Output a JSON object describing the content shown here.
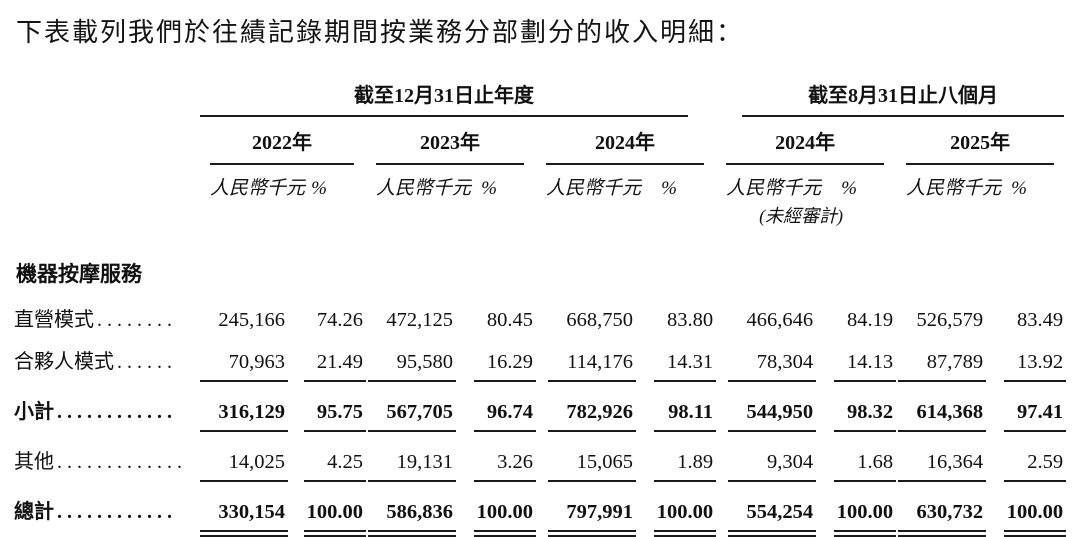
{
  "title": "下表載列我們於往績記錄期間按業務分部劃分的收入明細：",
  "table": {
    "groups": [
      {
        "label": "截至12月31日止年度",
        "years": [
          "2022年",
          "2023年",
          "2024年"
        ]
      },
      {
        "label": "截至8月31日止八個月",
        "years": [
          "2024年",
          "2025年"
        ]
      }
    ],
    "unit_label": "人民幣千元",
    "pct_label": "%",
    "unaudited_note": "(未經審計)",
    "section_header": "機器按摩服務",
    "rows": [
      {
        "label": "直營模式",
        "leader": "........",
        "values": [
          "245,166",
          "74.26",
          "472,125",
          "80.45",
          "668,750",
          "83.80",
          "466,646",
          "84.19",
          "526,579",
          "83.49"
        ]
      },
      {
        "label": "合夥人模式",
        "leader": "......",
        "values": [
          "70,963",
          "21.49",
          "95,580",
          "16.29",
          "114,176",
          "14.31",
          "78,304",
          "14.13",
          "87,789",
          "13.92"
        ]
      },
      {
        "label": "小計",
        "leader": "............",
        "values": [
          "316,129",
          "95.75",
          "567,705",
          "96.74",
          "782,926",
          "98.11",
          "544,950",
          "98.32",
          "614,368",
          "97.41"
        ]
      },
      {
        "label": "其他",
        "leader": ".............",
        "values": [
          "14,025",
          "4.25",
          "19,131",
          "3.26",
          "15,065",
          "1.89",
          "9,304",
          "1.68",
          "16,364",
          "2.59"
        ]
      },
      {
        "label": "總計",
        "leader": "............",
        "values": [
          "330,154",
          "100.00",
          "586,836",
          "100.00",
          "797,991",
          "100.00",
          "554,254",
          "100.00",
          "630,732",
          "100.00"
        ]
      }
    ]
  }
}
